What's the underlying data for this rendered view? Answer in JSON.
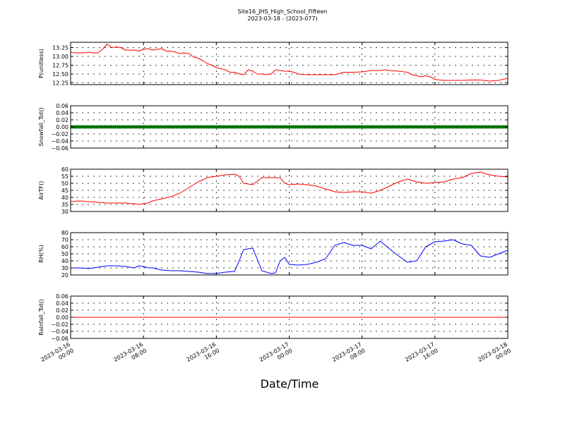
{
  "chart_data": {
    "type": "line",
    "title": "Site16_JHS_High_School_Fifteen",
    "subtitle": "2023-03-18 - (2023-077)",
    "xlabel": "Date/Time",
    "x_ticks": [
      [
        "2023-03-16",
        "00:00"
      ],
      [
        "2023-03-16",
        "08:00"
      ],
      [
        "2023-03-16",
        "16:00"
      ],
      [
        "2023-03-17",
        "00:00"
      ],
      [
        "2023-03-17",
        "08:00"
      ],
      [
        "2023-03-17",
        "16:00"
      ],
      [
        "2023-03-18",
        "00:00"
      ]
    ],
    "xlim_hours": [
      0,
      48
    ],
    "grid": true,
    "panels": [
      {
        "ylabel": "P(unitless)",
        "ylim": [
          12.2,
          13.4
        ],
        "yticks": [
          "12.25",
          "12.50",
          "12.75",
          "13.00",
          "13.25"
        ],
        "ytick_values": [
          12.25,
          12.5,
          12.75,
          13.0,
          13.25
        ],
        "color": "#ff0000",
        "marker": false,
        "x": [
          0,
          0.5,
          1,
          1.5,
          2,
          2.5,
          3,
          3.5,
          4,
          4.5,
          5,
          5.5,
          6,
          6.5,
          7,
          7.5,
          8,
          8.5,
          9,
          9.5,
          10,
          10.5,
          11,
          11.5,
          12,
          12.5,
          13,
          13.5,
          14,
          14.5,
          15,
          15.5,
          16,
          16.5,
          17,
          17.5,
          18,
          18.5,
          19,
          19.5,
          20,
          20.5,
          21,
          21.5,
          22,
          22.5,
          23,
          23.5,
          24,
          24.5,
          25,
          26,
          27,
          28,
          29,
          30,
          31,
          32,
          33,
          34,
          34.5,
          35,
          36,
          37,
          37.5,
          38,
          38.5,
          39,
          39.5,
          40,
          40.5,
          41,
          42,
          43,
          44,
          45,
          46,
          47,
          48
        ],
        "y": [
          13.12,
          13.1,
          13.1,
          13.1,
          13.12,
          13.1,
          13.1,
          13.2,
          13.35,
          13.25,
          13.27,
          13.25,
          13.18,
          13.18,
          13.18,
          13.15,
          13.2,
          13.22,
          13.18,
          13.2,
          13.22,
          13.15,
          13.15,
          13.12,
          13.08,
          13.1,
          13.08,
          12.98,
          12.95,
          12.88,
          12.8,
          12.75,
          12.68,
          12.65,
          12.62,
          12.55,
          12.55,
          12.5,
          12.48,
          12.62,
          12.58,
          12.5,
          12.5,
          12.48,
          12.5,
          12.62,
          12.6,
          12.58,
          12.58,
          12.55,
          12.5,
          12.48,
          12.48,
          12.48,
          12.48,
          12.55,
          12.55,
          12.56,
          12.6,
          12.6,
          12.62,
          12.6,
          12.58,
          12.55,
          12.48,
          12.45,
          12.42,
          12.45,
          12.42,
          12.35,
          12.33,
          12.32,
          12.32,
          12.32,
          12.33,
          12.33,
          12.3,
          12.32,
          12.38
        ]
      },
      {
        "ylabel": "Snowfall_Tot()",
        "ylim": [
          -0.06,
          0.06
        ],
        "yticks": [
          "−0.06",
          "−0.04",
          "−0.02",
          "0.00",
          "0.02",
          "0.04",
          "0.06"
        ],
        "ytick_values": [
          -0.06,
          -0.04,
          -0.02,
          0.0,
          0.02,
          0.04,
          0.06
        ],
        "color": "#007f00",
        "marker": true,
        "x": [
          0,
          48
        ],
        "y": [
          0,
          0
        ]
      },
      {
        "ylabel": "AirTF()",
        "ylim": [
          30,
          60
        ],
        "yticks": [
          "30",
          "35",
          "40",
          "45",
          "50",
          "55",
          "60"
        ],
        "ytick_values": [
          30,
          35,
          40,
          45,
          50,
          55,
          60
        ],
        "color": "#ff0000",
        "marker": false,
        "x": [
          0,
          1,
          2,
          3,
          4,
          5,
          6,
          7,
          7.5,
          8,
          8.5,
          9,
          10,
          11,
          12,
          13,
          14,
          15,
          16,
          17,
          18,
          18.5,
          19,
          20,
          21,
          22,
          23,
          23.5,
          24,
          25,
          26,
          27,
          28,
          29,
          30,
          31,
          32,
          33,
          34,
          35,
          36,
          37,
          38,
          39,
          40,
          41,
          42,
          43,
          44,
          45,
          46,
          47,
          48
        ],
        "y": [
          37,
          37.5,
          37,
          36.5,
          36,
          36,
          36,
          35.5,
          35,
          35.5,
          36,
          37.5,
          39,
          40.5,
          43,
          47,
          51,
          54,
          55,
          56,
          56.5,
          55,
          50,
          49,
          54,
          54,
          54,
          50,
          49,
          49.5,
          49,
          48,
          46,
          44,
          43.5,
          44,
          44,
          43,
          45,
          48,
          51,
          53,
          51,
          50,
          50.5,
          51,
          53,
          54,
          57,
          58,
          56,
          55,
          54.5
        ]
      },
      {
        "ylabel": "RH(%)",
        "ylim": [
          20,
          80
        ],
        "yticks": [
          "20",
          "30",
          "40",
          "50",
          "60",
          "70",
          "80"
        ],
        "ytick_values": [
          20,
          30,
          40,
          50,
          60,
          70,
          80
        ],
        "color": "#0000ff",
        "marker": false,
        "x": [
          0,
          1,
          2,
          3,
          4,
          5,
          6,
          7,
          7.5,
          8,
          8.5,
          9,
          10,
          11,
          12,
          13,
          14,
          15,
          16,
          17,
          18,
          18.5,
          19,
          20,
          21,
          22,
          22.5,
          23,
          23.5,
          24,
          25,
          26,
          27,
          28,
          29,
          30,
          31,
          32,
          33,
          34,
          35,
          36,
          37,
          38,
          39,
          40,
          41,
          42,
          43,
          44,
          45,
          46,
          47,
          48
        ],
        "y": [
          30,
          30,
          29,
          31,
          33,
          33,
          32,
          30,
          33,
          32,
          30,
          30,
          27,
          26,
          26,
          25,
          24,
          22,
          22,
          24,
          25,
          40,
          56,
          58,
          26,
          22,
          23,
          40,
          45,
          35,
          34,
          35,
          38,
          43,
          62,
          66,
          62,
          62,
          57,
          68,
          57,
          47,
          38,
          40,
          60,
          67,
          68,
          70,
          64,
          62,
          47,
          45,
          50,
          55
        ]
      },
      {
        "ylabel": "Rainfall_Tot()",
        "ylim": [
          -0.06,
          0.06
        ],
        "yticks": [
          "−0.06",
          "−0.04",
          "−0.02",
          "0.00",
          "0.02",
          "0.04",
          "0.06"
        ],
        "ytick_values": [
          -0.06,
          -0.04,
          -0.02,
          0.0,
          0.02,
          0.04,
          0.06
        ],
        "color": "#ff0000",
        "marker": false,
        "x": [
          0,
          48
        ],
        "y": [
          0,
          0
        ]
      }
    ]
  }
}
